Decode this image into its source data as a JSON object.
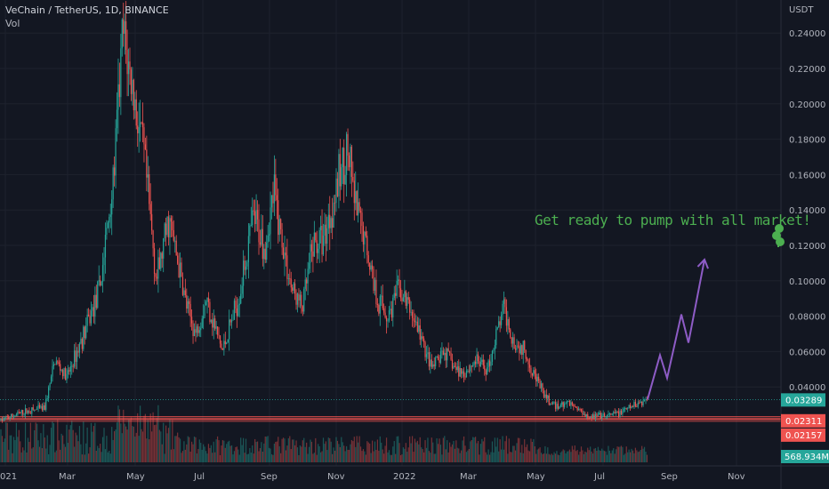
{
  "header": {
    "symbol": "VeChain / TetherUS, 1D, BINANCE",
    "volume_label": "Vol"
  },
  "annotation": {
    "text": "Get ready to pump with all market!"
  },
  "icons": {
    "side_widget": "clover-icon"
  },
  "colors": {
    "background": "#131722",
    "up": "#26a69a",
    "down": "#ef5350",
    "projection": "#8e5cc6",
    "annotation": "#4caf50",
    "grid": "#1e222d",
    "axis_text": "#b2b5be"
  },
  "chart_data": {
    "type": "candlestick",
    "title": "VeChain / TetherUS, 1D, BINANCE",
    "y_axis": {
      "unit": "USDT",
      "ticks": [
        "0.24000",
        "0.22000",
        "0.20000",
        "0.18000",
        "0.16000",
        "0.14000",
        "0.12000",
        "0.10000",
        "0.08000",
        "0.06000",
        "0.04000"
      ],
      "range": [
        0.0,
        0.25
      ]
    },
    "x_axis": {
      "ticks": [
        "021",
        "Mar",
        "May",
        "Jul",
        "Sep",
        "Nov",
        "2022",
        "Mar",
        "May",
        "Jul",
        "Sep",
        "Nov"
      ]
    },
    "price_path": [
      {
        "x": 0,
        "y": 0.021
      },
      {
        "x": 28,
        "y": 0.026
      },
      {
        "x": 50,
        "y": 0.028
      },
      {
        "x": 62,
        "y": 0.055
      },
      {
        "x": 75,
        "y": 0.045
      },
      {
        "x": 98,
        "y": 0.075
      },
      {
        "x": 112,
        "y": 0.095
      },
      {
        "x": 128,
        "y": 0.16
      },
      {
        "x": 138,
        "y": 0.24
      },
      {
        "x": 150,
        "y": 0.205
      },
      {
        "x": 162,
        "y": 0.17
      },
      {
        "x": 176,
        "y": 0.1
      },
      {
        "x": 190,
        "y": 0.135
      },
      {
        "x": 210,
        "y": 0.085
      },
      {
        "x": 220,
        "y": 0.07
      },
      {
        "x": 232,
        "y": 0.09
      },
      {
        "x": 250,
        "y": 0.06
      },
      {
        "x": 268,
        "y": 0.09
      },
      {
        "x": 285,
        "y": 0.135
      },
      {
        "x": 298,
        "y": 0.12
      },
      {
        "x": 308,
        "y": 0.15
      },
      {
        "x": 318,
        "y": 0.12
      },
      {
        "x": 328,
        "y": 0.095
      },
      {
        "x": 340,
        "y": 0.085
      },
      {
        "x": 352,
        "y": 0.12
      },
      {
        "x": 364,
        "y": 0.125
      },
      {
        "x": 375,
        "y": 0.145
      },
      {
        "x": 390,
        "y": 0.175
      },
      {
        "x": 400,
        "y": 0.14
      },
      {
        "x": 412,
        "y": 0.12
      },
      {
        "x": 424,
        "y": 0.09
      },
      {
        "x": 436,
        "y": 0.08
      },
      {
        "x": 448,
        "y": 0.095
      },
      {
        "x": 460,
        "y": 0.085
      },
      {
        "x": 472,
        "y": 0.07
      },
      {
        "x": 485,
        "y": 0.05
      },
      {
        "x": 500,
        "y": 0.06
      },
      {
        "x": 512,
        "y": 0.05
      },
      {
        "x": 522,
        "y": 0.048
      },
      {
        "x": 535,
        "y": 0.055
      },
      {
        "x": 548,
        "y": 0.05
      },
      {
        "x": 556,
        "y": 0.065
      },
      {
        "x": 566,
        "y": 0.085
      },
      {
        "x": 578,
        "y": 0.065
      },
      {
        "x": 590,
        "y": 0.06
      },
      {
        "x": 603,
        "y": 0.045
      },
      {
        "x": 612,
        "y": 0.035
      },
      {
        "x": 622,
        "y": 0.029
      },
      {
        "x": 640,
        "y": 0.031
      },
      {
        "x": 660,
        "y": 0.024
      },
      {
        "x": 680,
        "y": 0.023
      },
      {
        "x": 700,
        "y": 0.026
      },
      {
        "x": 718,
        "y": 0.031
      },
      {
        "x": 728,
        "y": 0.0329
      }
    ],
    "horizontal_lines": [
      {
        "value": 0.03289,
        "label": "0.03289",
        "color": "#26a69a",
        "style": "dotted"
      },
      {
        "value": 0.02311,
        "label": "0.02311",
        "color": "#ef5350",
        "style": "solid"
      },
      {
        "value": 0.02157,
        "label": "0.02157",
        "color": "#ef5350",
        "style": "solid"
      }
    ],
    "projection": [
      {
        "x": 728,
        "y": 0.0329
      },
      {
        "x": 742,
        "y": 0.058
      },
      {
        "x": 750,
        "y": 0.045
      },
      {
        "x": 766,
        "y": 0.081
      },
      {
        "x": 774,
        "y": 0.065
      },
      {
        "x": 792,
        "y": 0.112
      }
    ],
    "volume": {
      "last_label": "568.934M"
    }
  }
}
